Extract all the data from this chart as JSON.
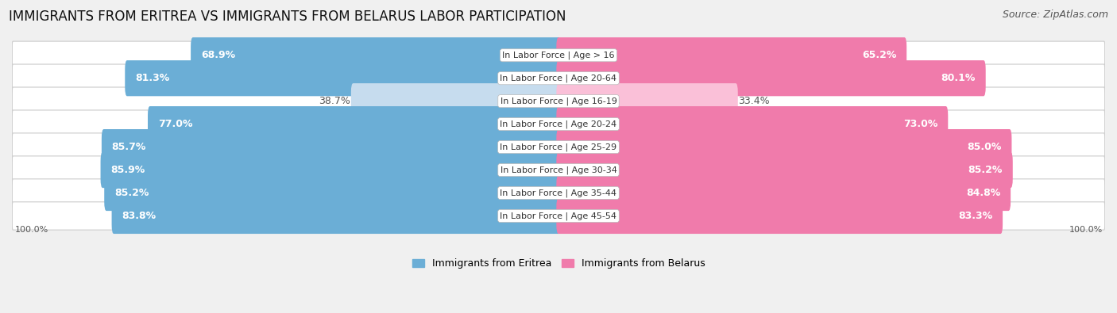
{
  "title": "IMMIGRANTS FROM ERITREA VS IMMIGRANTS FROM BELARUS LABOR PARTICIPATION",
  "source": "Source: ZipAtlas.com",
  "categories": [
    "In Labor Force | Age > 16",
    "In Labor Force | Age 20-64",
    "In Labor Force | Age 16-19",
    "In Labor Force | Age 20-24",
    "In Labor Force | Age 25-29",
    "In Labor Force | Age 30-34",
    "In Labor Force | Age 35-44",
    "In Labor Force | Age 45-54"
  ],
  "eritrea_values": [
    68.9,
    81.3,
    38.7,
    77.0,
    85.7,
    85.9,
    85.2,
    83.8
  ],
  "belarus_values": [
    65.2,
    80.1,
    33.4,
    73.0,
    85.0,
    85.2,
    84.8,
    83.3
  ],
  "eritrea_color": "#6BAED6",
  "belarus_color": "#F07BAB",
  "eritrea_light_color": "#C6DCEE",
  "belarus_light_color": "#FAC0D8",
  "background_color": "#f0f0f0",
  "row_bg_color": "#ffffff",
  "row_border_color": "#cccccc",
  "label_white": "#ffffff",
  "label_dark": "#555555",
  "label_center_color": "#333333",
  "legend_eritrea": "Immigrants from Eritrea",
  "legend_belarus": "Immigrants from Belarus",
  "title_fontsize": 12,
  "source_fontsize": 9,
  "axis_label_fontsize": 8,
  "bar_label_fontsize": 9,
  "cat_label_fontsize": 8,
  "max_value": 100.0,
  "bottom_label": "100.0%"
}
